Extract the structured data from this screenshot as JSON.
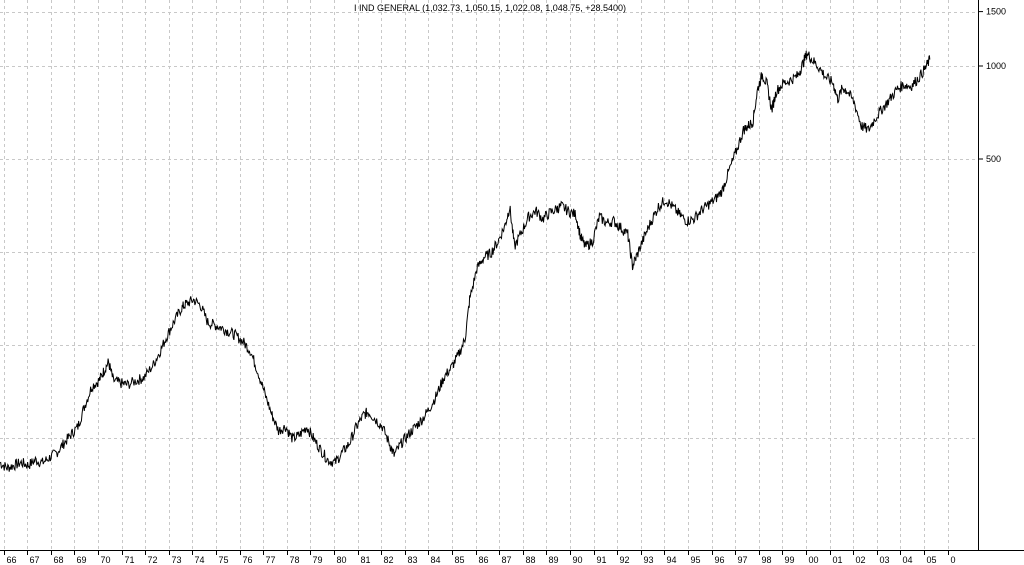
{
  "chart_data": {
    "type": "line",
    "title": "I IND GENERAL (1,032.73, 1,050.15, 1,022.08, 1,048.75, +28.5400)",
    "xlabel": "",
    "ylabel": "",
    "x_tick_labels": [
      "66",
      "67",
      "68",
      "69",
      "70",
      "71",
      "72",
      "73",
      "74",
      "75",
      "76",
      "77",
      "78",
      "79",
      "80",
      "81",
      "82",
      "83",
      "84",
      "85",
      "86",
      "87",
      "88",
      "89",
      "90",
      "91",
      "92",
      "93",
      "94",
      "95",
      "96",
      "97",
      "98",
      "99",
      "00",
      "01",
      "02",
      "03",
      "04",
      "05",
      "0"
    ],
    "y_tick_labels": [
      "1500",
      "1000",
      "500"
    ],
    "y_ticks": [
      1500,
      1000,
      500
    ],
    "y_scale": "log",
    "ylim": [
      40,
      1600
    ],
    "xlim": [
      1966,
      2006
    ],
    "grid": true,
    "series": [
      {
        "values": [
          [
            1966.0,
            52
          ],
          [
            1966.3,
            50
          ],
          [
            1966.6,
            51
          ],
          [
            1966.9,
            52
          ],
          [
            1967.2,
            51
          ],
          [
            1967.5,
            53
          ],
          [
            1967.8,
            52
          ],
          [
            1968.1,
            54
          ],
          [
            1968.4,
            56
          ],
          [
            1968.7,
            60
          ],
          [
            1969.0,
            64
          ],
          [
            1969.3,
            68
          ],
          [
            1969.6,
            80
          ],
          [
            1969.9,
            92
          ],
          [
            1970.2,
            96
          ],
          [
            1970.4,
            103
          ],
          [
            1970.6,
            110
          ],
          [
            1970.8,
            96
          ],
          [
            1971.1,
            94
          ],
          [
            1971.4,
            93
          ],
          [
            1971.8,
            96
          ],
          [
            1972.1,
            98
          ],
          [
            1972.5,
            108
          ],
          [
            1972.8,
            120
          ],
          [
            1973.1,
            135
          ],
          [
            1973.4,
            150
          ],
          [
            1973.7,
            165
          ],
          [
            1973.9,
            170
          ],
          [
            1974.2,
            175
          ],
          [
            1974.5,
            168
          ],
          [
            1974.8,
            148
          ],
          [
            1975.1,
            145
          ],
          [
            1975.4,
            142
          ],
          [
            1975.7,
            138
          ],
          [
            1976.0,
            134
          ],
          [
            1976.3,
            128
          ],
          [
            1976.6,
            120
          ],
          [
            1976.9,
            104
          ],
          [
            1977.2,
            88
          ],
          [
            1977.5,
            75
          ],
          [
            1977.8,
            66
          ],
          [
            1978.1,
            68
          ],
          [
            1978.4,
            62
          ],
          [
            1978.7,
            64
          ],
          [
            1979.0,
            68
          ],
          [
            1979.3,
            62
          ],
          [
            1979.6,
            57
          ],
          [
            1979.9,
            53
          ],
          [
            1980.2,
            52
          ],
          [
            1980.5,
            56
          ],
          [
            1980.8,
            60
          ],
          [
            1981.1,
            68
          ],
          [
            1981.4,
            74
          ],
          [
            1981.6,
            76
          ],
          [
            1981.9,
            72
          ],
          [
            1982.2,
            68
          ],
          [
            1982.5,
            60
          ],
          [
            1982.7,
            55
          ],
          [
            1983.0,
            60
          ],
          [
            1983.3,
            64
          ],
          [
            1983.6,
            68
          ],
          [
            1983.9,
            72
          ],
          [
            1984.2,
            78
          ],
          [
            1984.5,
            86
          ],
          [
            1984.8,
            98
          ],
          [
            1985.1,
            105
          ],
          [
            1985.4,
            115
          ],
          [
            1985.7,
            130
          ],
          [
            1985.9,
            175
          ],
          [
            1986.2,
            220
          ],
          [
            1986.5,
            240
          ],
          [
            1986.8,
            248
          ],
          [
            1987.1,
            270
          ],
          [
            1987.4,
            305
          ],
          [
            1987.6,
            350
          ],
          [
            1987.8,
            260
          ],
          [
            1988.1,
            290
          ],
          [
            1988.4,
            325
          ],
          [
            1988.7,
            340
          ],
          [
            1989.0,
            320
          ],
          [
            1989.3,
            335
          ],
          [
            1989.6,
            345
          ],
          [
            1989.8,
            352
          ],
          [
            1990.1,
            338
          ],
          [
            1990.4,
            330
          ],
          [
            1990.6,
            280
          ],
          [
            1990.8,
            260
          ],
          [
            1991.1,
            270
          ],
          [
            1991.4,
            325
          ],
          [
            1991.7,
            310
          ],
          [
            1992.0,
            315
          ],
          [
            1992.3,
            300
          ],
          [
            1992.6,
            285
          ],
          [
            1992.8,
            225
          ],
          [
            1993.0,
            245
          ],
          [
            1993.3,
            280
          ],
          [
            1993.6,
            315
          ],
          [
            1993.9,
            350
          ],
          [
            1994.2,
            370
          ],
          [
            1994.5,
            350
          ],
          [
            1994.8,
            330
          ],
          [
            1995.1,
            315
          ],
          [
            1995.4,
            320
          ],
          [
            1995.7,
            340
          ],
          [
            1996.0,
            355
          ],
          [
            1996.3,
            370
          ],
          [
            1996.6,
            395
          ],
          [
            1996.9,
            460
          ],
          [
            1997.2,
            530
          ],
          [
            1997.5,
            620
          ],
          [
            1997.7,
            640
          ],
          [
            1997.9,
            660
          ],
          [
            1998.1,
            840
          ],
          [
            1998.3,
            940
          ],
          [
            1998.5,
            870
          ],
          [
            1998.7,
            720
          ],
          [
            1998.9,
            830
          ],
          [
            1999.2,
            880
          ],
          [
            1999.5,
            900
          ],
          [
            1999.8,
            930
          ],
          [
            2000.0,
            1010
          ],
          [
            2000.2,
            1100
          ],
          [
            2000.4,
            1050
          ],
          [
            2000.7,
            990
          ],
          [
            2001.0,
            920
          ],
          [
            2001.3,
            880
          ],
          [
            2001.5,
            780
          ],
          [
            2001.7,
            850
          ],
          [
            2001.9,
            830
          ],
          [
            2002.2,
            760
          ],
          [
            2002.5,
            640
          ],
          [
            2002.8,
            620
          ],
          [
            2003.1,
            680
          ],
          [
            2003.4,
            730
          ],
          [
            2003.7,
            780
          ],
          [
            2004.0,
            840
          ],
          [
            2004.3,
            870
          ],
          [
            2004.6,
            860
          ],
          [
            2004.9,
            910
          ],
          [
            2005.2,
            980
          ],
          [
            2005.4,
            1048.75
          ]
        ]
      }
    ]
  }
}
